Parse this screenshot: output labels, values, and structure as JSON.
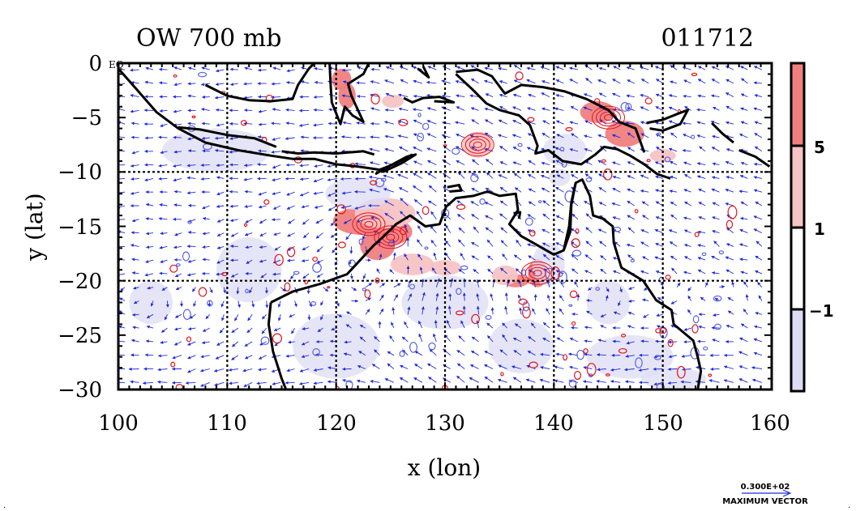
{
  "title_left": "OW 700 mb",
  "title_right": "011712",
  "corner_label": "EQ",
  "xlabel": "x (lon)",
  "ylabel": "y (lat)",
  "x_ticks": [
    "100",
    "110",
    "120",
    "130",
    "140",
    "150",
    "160"
  ],
  "y_ticks": [
    "0",
    "−5",
    "−10",
    "−15",
    "−20",
    "−25",
    "−30"
  ],
  "x_range": [
    100,
    160
  ],
  "y_range": [
    -30,
    0
  ],
  "grid_lon": [
    110,
    120,
    130,
    140,
    150
  ],
  "grid_lat": [
    -10,
    -20
  ],
  "colorbar": {
    "labels": [
      "5",
      "1",
      "−1"
    ],
    "levels": [
      {
        "range": "> 5",
        "color": "#f08080"
      },
      {
        "range": "1 to 5",
        "color": "#f7c3c3"
      },
      {
        "range": "-1 to 1",
        "color": "#ffffff"
      },
      {
        "range": "< -1",
        "color": "#dcdcf4"
      }
    ]
  },
  "vector_legend": {
    "value": "0.300E+02",
    "label": "MAXIMUM VECTOR"
  },
  "colors": {
    "coast": "#000000",
    "vector": "#1f2bd6",
    "pos_contour": "#e0141e",
    "neg_contour": "#5a64e0"
  }
}
